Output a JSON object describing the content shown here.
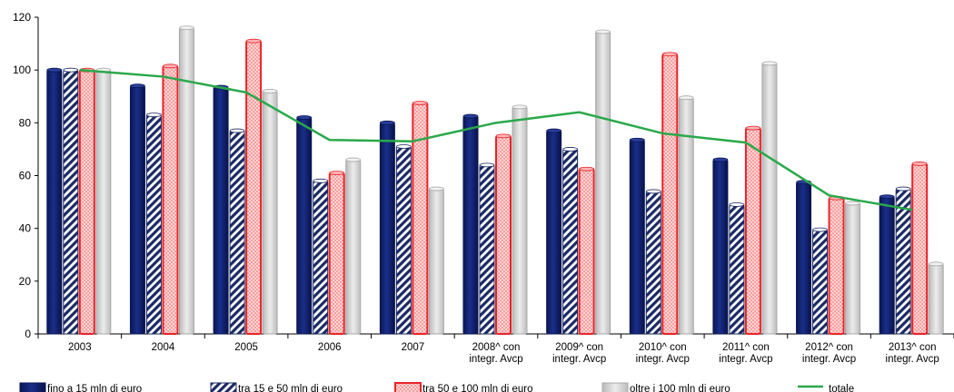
{
  "chart_data": {
    "type": "bar",
    "title": "",
    "xlabel": "",
    "ylabel": "",
    "ylim": [
      0,
      120
    ],
    "yticks": [
      0,
      20,
      40,
      60,
      80,
      100,
      120
    ],
    "grid": false,
    "legend_position": "bottom",
    "categories": [
      [
        "2003"
      ],
      [
        "2004"
      ],
      [
        "2005"
      ],
      [
        "2006"
      ],
      [
        "2007"
      ],
      [
        "2008^ con",
        "integr. Avcp"
      ],
      [
        "2009^ con",
        "integr. Avcp"
      ],
      [
        "2010^ con",
        "integr. Avcp"
      ],
      [
        "2011^ con",
        "integr. Avcp"
      ],
      [
        "2012^ con",
        "integr. Avcp"
      ],
      [
        "2013^ con",
        "integr. Avcp"
      ]
    ],
    "series": [
      {
        "name": "fino a 15 mln di euro",
        "type": "bar",
        "color": "#0d1f6e",
        "values": [
          100,
          94,
          93.5,
          82,
          80,
          82.5,
          77,
          73.5,
          66,
          57.5,
          52
        ]
      },
      {
        "name": "tra 15 e 50 mln di euro",
        "type": "bar",
        "color": "#1b2a63",
        "pattern": "hatch",
        "values": [
          100,
          83,
          77,
          58,
          71,
          64,
          70,
          54,
          49,
          39.5,
          55
        ]
      },
      {
        "name": "tra 50 e 100 mln di euro",
        "type": "bar",
        "color": "#e8232a",
        "pattern": "dots",
        "values": [
          100,
          101.5,
          111,
          61,
          87.5,
          75,
          62.5,
          106,
          78,
          51.5,
          64.5
        ]
      },
      {
        "name": "oltre i 100 mln di euro",
        "type": "bar",
        "color": "#cfcfcf",
        "values": [
          100,
          116,
          92,
          66,
          55,
          86,
          114.5,
          89.5,
          102.5,
          49.5,
          26.5
        ]
      },
      {
        "name": "totale",
        "type": "line",
        "color": "#2aa84a",
        "values": [
          100,
          97.5,
          91.5,
          73.5,
          73,
          80,
          84,
          76,
          72.5,
          52.5,
          47
        ]
      }
    ]
  }
}
